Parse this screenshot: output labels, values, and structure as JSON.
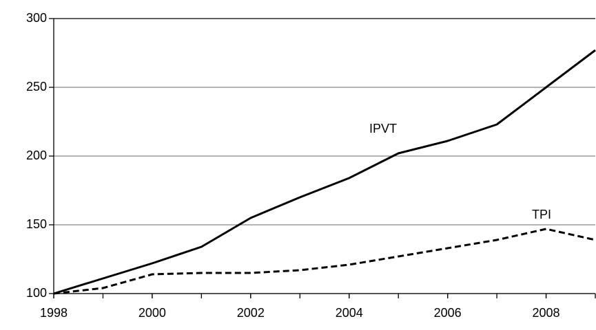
{
  "chart_data": {
    "type": "line",
    "x": [
      1998,
      1999,
      2000,
      2001,
      2002,
      2003,
      2004,
      2005,
      2006,
      2007,
      2008,
      2009
    ],
    "series": [
      {
        "name": "IPVT",
        "color": "#000000",
        "dash": false,
        "values": [
          100,
          111,
          122,
          134,
          155,
          170,
          184,
          202,
          211,
          223,
          250,
          277
        ]
      },
      {
        "name": "TPI",
        "color": "#000000",
        "dash": true,
        "values": [
          100,
          104,
          114,
          115,
          115,
          117,
          121,
          127,
          133,
          139,
          147,
          139
        ]
      }
    ],
    "xlim": [
      1998,
      2009
    ],
    "xticks": [
      1998,
      2000,
      2002,
      2004,
      2006,
      2008
    ],
    "ylim": [
      100,
      300
    ],
    "yticks": [
      100,
      150,
      200,
      250,
      300
    ],
    "grid": true
  }
}
